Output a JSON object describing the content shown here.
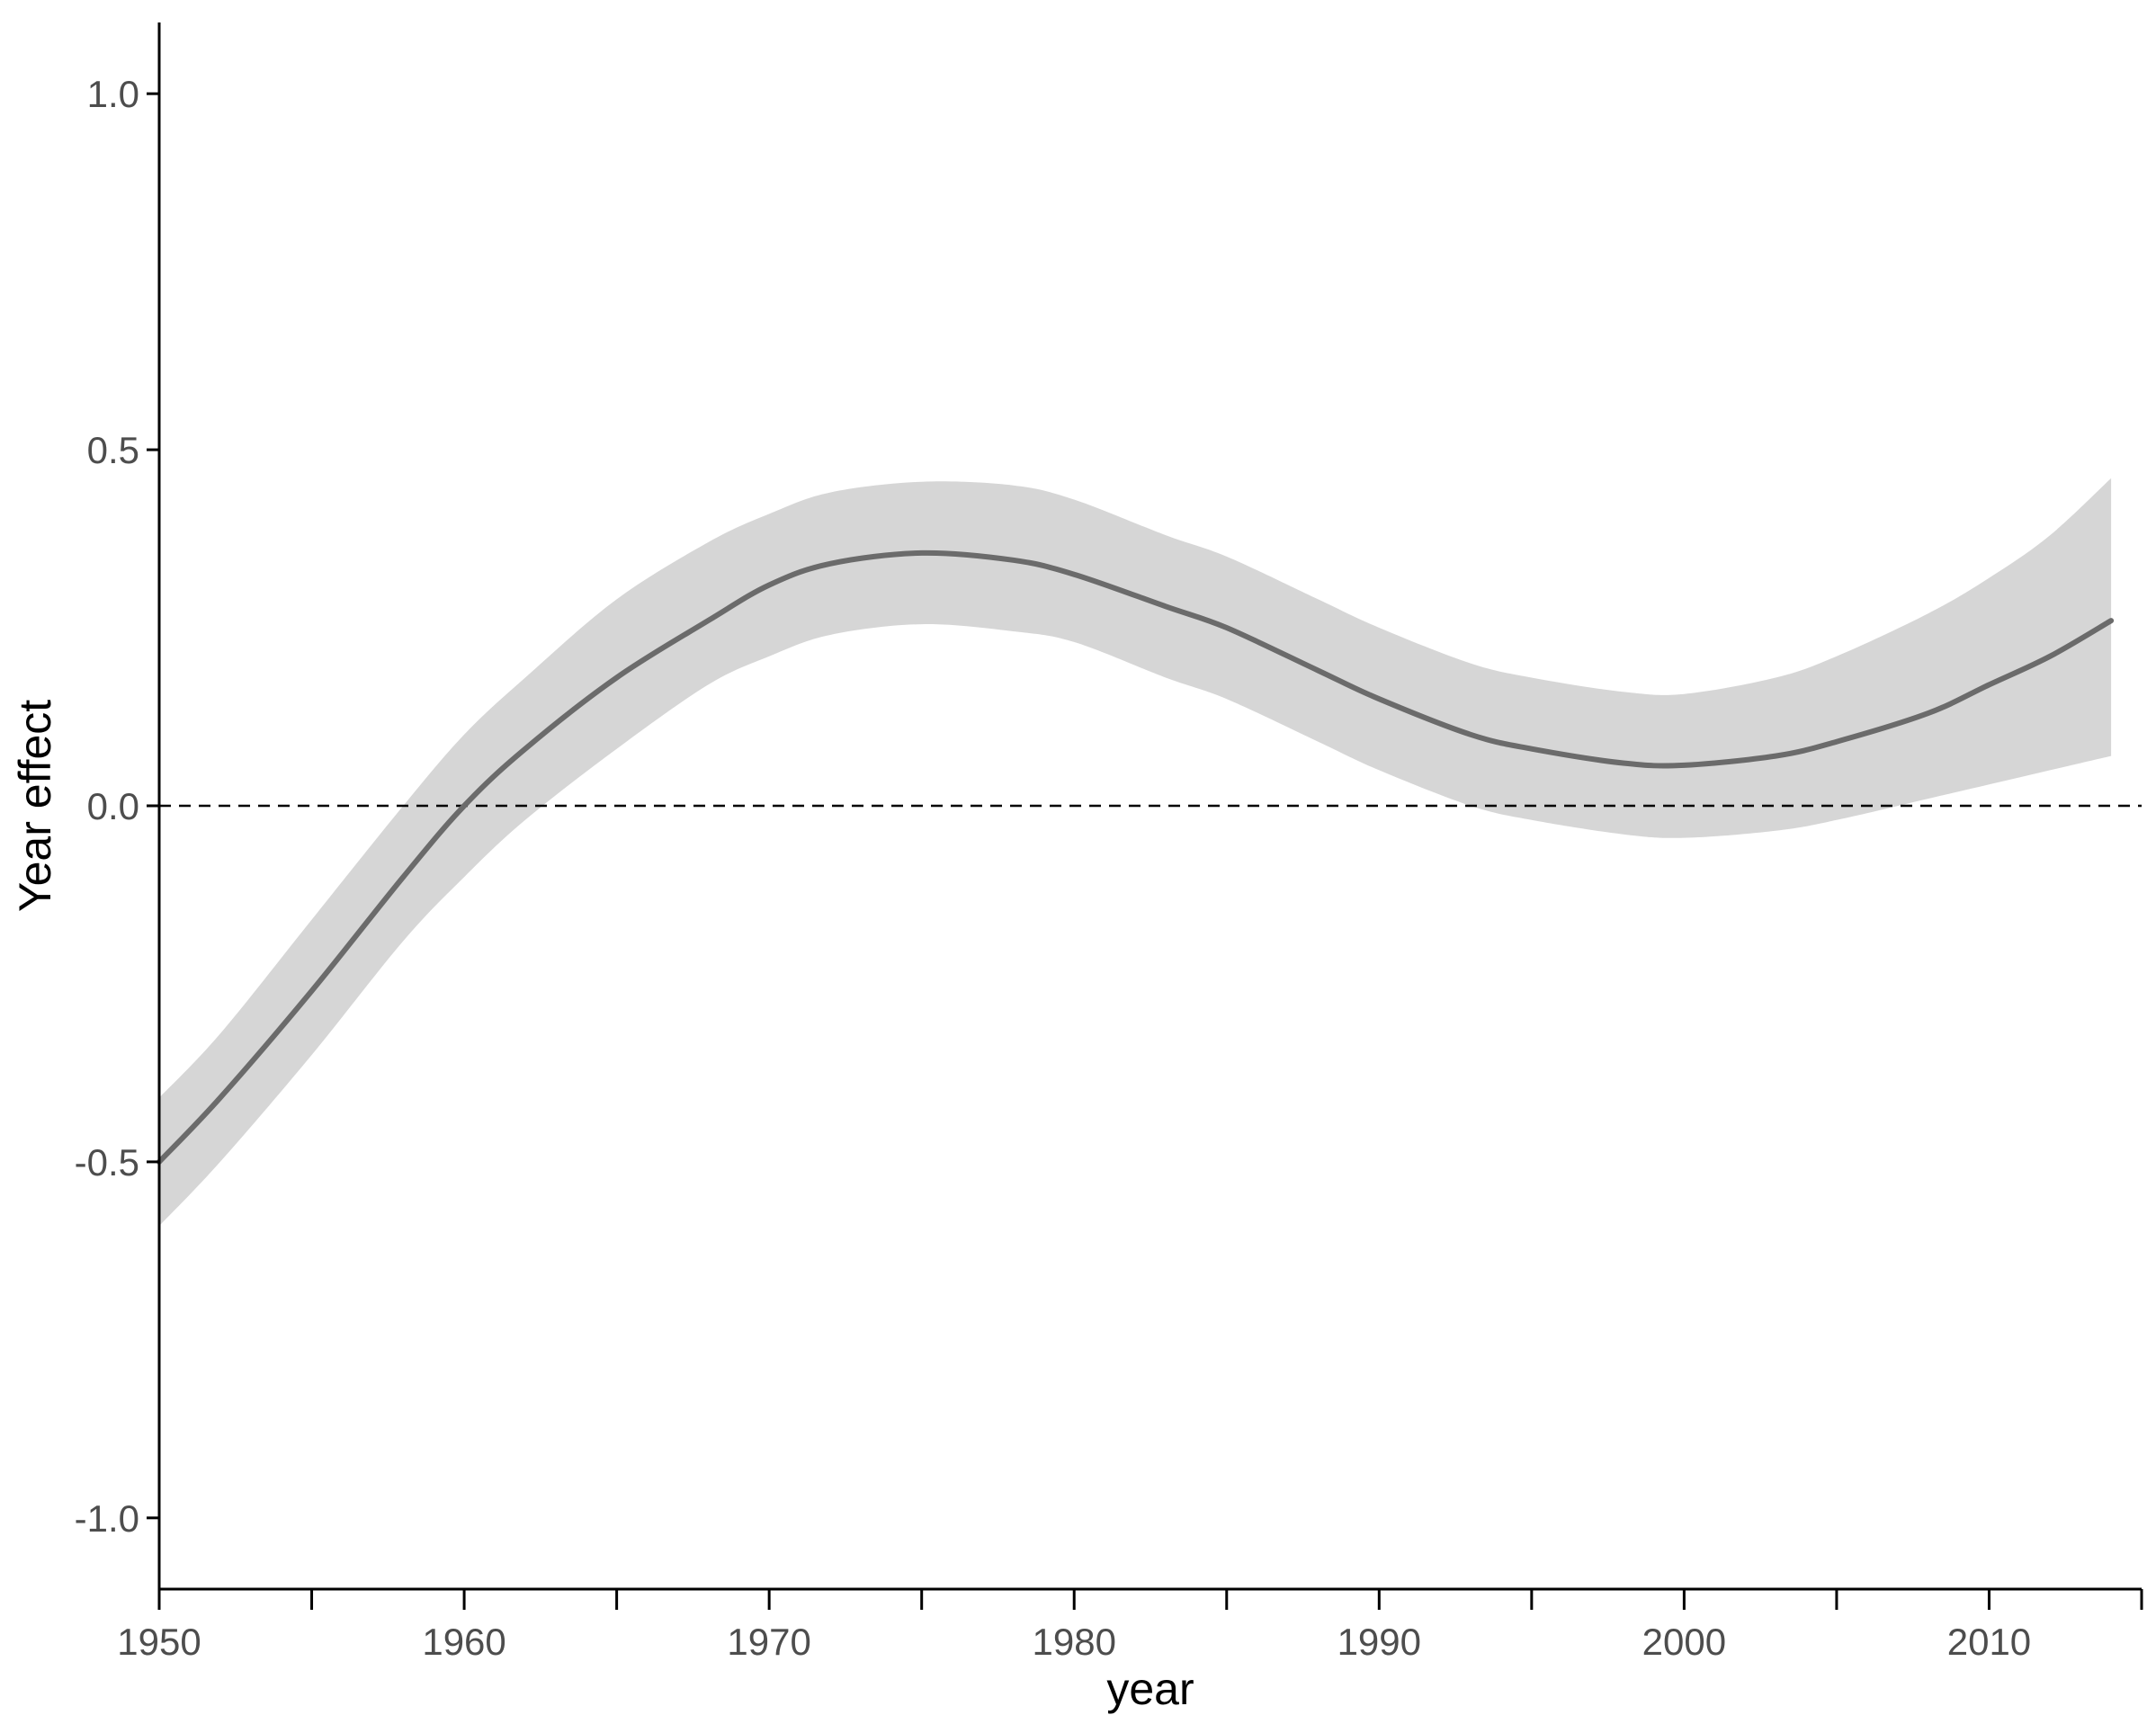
{
  "chart_data": {
    "type": "line",
    "xlabel": "year",
    "ylabel": "Year effect",
    "xlim": [
      1950,
      2015
    ],
    "ylim": [
      -1.1,
      1.1
    ],
    "x_ticks": [
      1950,
      1960,
      1970,
      1980,
      1990,
      2000,
      2010
    ],
    "x_minor_ticks": [
      1955,
      1965,
      1975,
      1985,
      1995,
      2005,
      2015
    ],
    "x_tick_labels": [
      "1950",
      "1960",
      "1970",
      "1980",
      "1990",
      "2000",
      "2010"
    ],
    "y_ticks": [
      -1.0,
      -0.5,
      0.0,
      0.5,
      1.0
    ],
    "y_tick_labels": [
      "-1.0",
      "-0.5",
      "0.0",
      "0.5",
      "1.0"
    ],
    "reference_line": {
      "y": 0.0,
      "style": "dashed"
    },
    "grid": false,
    "series": [
      {
        "x": [
          1950,
          1952,
          1955,
          1958,
          1960,
          1962,
          1965,
          1968,
          1970,
          1972,
          1975,
          1978,
          1980,
          1983,
          1985,
          1988,
          1990,
          1993,
          1995,
          1998,
          2000,
          2003,
          2005,
          2008,
          2010,
          2012,
          2014
        ],
        "y": [
          -0.5,
          -0.41,
          -0.26,
          -0.1,
          0.0,
          0.08,
          0.18,
          0.26,
          0.31,
          0.34,
          0.355,
          0.345,
          0.325,
          0.28,
          0.25,
          0.19,
          0.15,
          0.1,
          0.08,
          0.06,
          0.057,
          0.07,
          0.09,
          0.13,
          0.17,
          0.21,
          0.26
        ],
        "lower": [
          -0.59,
          -0.5,
          -0.35,
          -0.19,
          -0.1,
          -0.02,
          0.08,
          0.17,
          0.21,
          0.24,
          0.255,
          0.245,
          0.23,
          0.18,
          0.15,
          0.09,
          0.05,
          0.0,
          -0.02,
          -0.04,
          -0.045,
          -0.035,
          -0.02,
          0.01,
          0.03,
          0.05,
          0.07
        ],
        "upper": [
          -0.41,
          -0.32,
          -0.16,
          0.0,
          0.1,
          0.18,
          0.29,
          0.37,
          0.41,
          0.44,
          0.455,
          0.45,
          0.43,
          0.38,
          0.35,
          0.29,
          0.25,
          0.2,
          0.18,
          0.16,
          0.157,
          0.18,
          0.21,
          0.27,
          0.32,
          0.38,
          0.46
        ],
        "line_color": "#6b6b6b",
        "band_color": "#d6d6d6"
      }
    ]
  }
}
